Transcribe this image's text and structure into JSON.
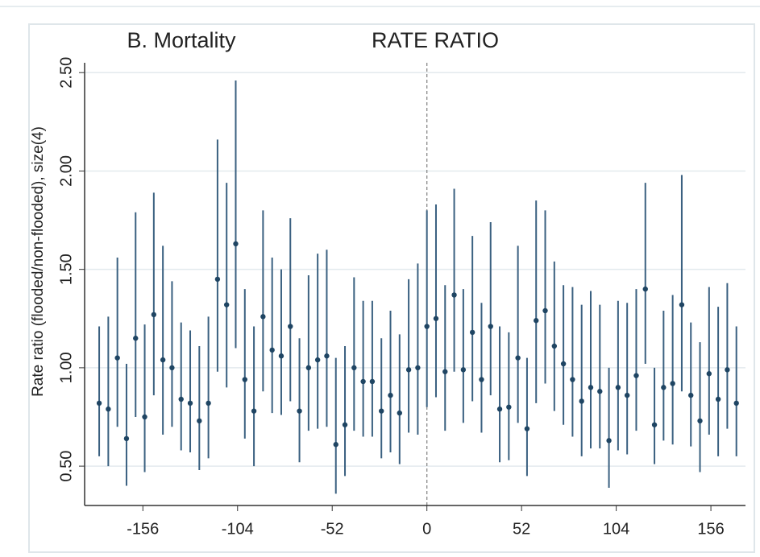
{
  "chart_data": {
    "type": "errorbar",
    "title": "RATE RATIO",
    "subtitle": "B. Mortality",
    "y_label": "Rate ratio (flooded/non-flooded), size(4)",
    "x": [
      -180,
      -175,
      -170,
      -165,
      -160,
      -155,
      -150,
      -145,
      -140,
      -135,
      -130,
      -125,
      -120,
      -115,
      -110,
      -105,
      -100,
      -95,
      -90,
      -85,
      -80,
      -75,
      -70,
      -65,
      -60,
      -55,
      -50,
      -45,
      -40,
      -35,
      -30,
      -25,
      -20,
      -15,
      -10,
      -5,
      0,
      5,
      10,
      15,
      20,
      25,
      30,
      35,
      40,
      45,
      50,
      55,
      60,
      65,
      70,
      75,
      80,
      85,
      90,
      95,
      100,
      105,
      110,
      115,
      120,
      125,
      130,
      135,
      140,
      145,
      150,
      155,
      160,
      165,
      170
    ],
    "values": [
      0.82,
      0.79,
      1.05,
      0.64,
      1.15,
      0.75,
      1.27,
      1.04,
      1.0,
      0.84,
      0.82,
      0.73,
      0.82,
      1.45,
      1.32,
      1.63,
      0.94,
      0.78,
      1.26,
      1.09,
      1.06,
      1.21,
      0.78,
      1.0,
      1.04,
      1.06,
      0.61,
      0.71,
      1.0,
      0.93,
      0.93,
      0.78,
      0.86,
      0.77,
      0.99,
      1.0,
      1.21,
      1.25,
      0.98,
      1.37,
      0.99,
      1.18,
      0.94,
      1.21,
      0.79,
      0.8,
      1.05,
      0.69,
      1.24,
      1.29,
      1.11,
      1.02,
      0.94,
      0.83,
      0.9,
      0.88,
      0.63,
      0.9,
      0.86,
      0.96,
      1.4,
      0.71,
      0.9,
      0.92,
      1.32,
      0.86,
      0.73,
      0.97,
      0.84,
      0.99,
      0.82
    ],
    "lower": [
      0.55,
      0.5,
      0.7,
      0.4,
      0.75,
      0.47,
      0.86,
      0.66,
      0.7,
      0.58,
      0.57,
      0.48,
      0.54,
      0.98,
      0.9,
      1.1,
      0.64,
      0.5,
      0.88,
      0.77,
      0.76,
      0.83,
      0.52,
      0.68,
      0.69,
      0.7,
      0.36,
      0.45,
      0.68,
      0.65,
      0.65,
      0.54,
      0.57,
      0.51,
      0.67,
      0.66,
      0.8,
      0.85,
      0.68,
      0.98,
      0.72,
      0.83,
      0.67,
      0.86,
      0.52,
      0.53,
      0.72,
      0.45,
      0.82,
      0.92,
      0.78,
      0.71,
      0.65,
      0.55,
      0.59,
      0.59,
      0.39,
      0.58,
      0.56,
      0.68,
      1.02,
      0.51,
      0.63,
      0.61,
      0.88,
      0.6,
      0.47,
      0.66,
      0.55,
      0.69,
      0.55
    ],
    "upper": [
      1.21,
      1.26,
      1.56,
      1.02,
      1.79,
      1.22,
      1.89,
      1.62,
      1.44,
      1.23,
      1.19,
      1.11,
      1.26,
      2.16,
      1.94,
      2.46,
      1.4,
      1.21,
      1.8,
      1.56,
      1.5,
      1.76,
      1.15,
      1.47,
      1.58,
      1.6,
      1.05,
      1.11,
      1.46,
      1.34,
      1.34,
      1.15,
      1.29,
      1.17,
      1.45,
      1.53,
      1.8,
      1.83,
      1.42,
      1.91,
      1.4,
      1.67,
      1.33,
      1.74,
      1.21,
      1.18,
      1.62,
      1.05,
      1.85,
      1.8,
      1.54,
      1.42,
      1.41,
      1.32,
      1.39,
      1.32,
      1.0,
      1.34,
      1.33,
      1.4,
      1.94,
      1.0,
      1.29,
      1.37,
      1.98,
      1.23,
      1.13,
      1.41,
      1.31,
      1.43,
      1.21
    ],
    "color": "#3a6080",
    "xlim": [
      -188,
      175
    ],
    "ylim": [
      0.3,
      2.55
    ],
    "xticks": [
      -156,
      -104,
      -52,
      0,
      52,
      104,
      156
    ],
    "yticks": [
      {
        "value": 0.5,
        "label": "0.50"
      },
      {
        "value": 1.0,
        "label": "1.00"
      },
      {
        "value": 1.5,
        "label": "1.50"
      },
      {
        "value": 2.0,
        "label": "2.00"
      },
      {
        "value": 2.5,
        "label": "2.50"
      }
    ],
    "grid": true,
    "reference_x": 0
  }
}
